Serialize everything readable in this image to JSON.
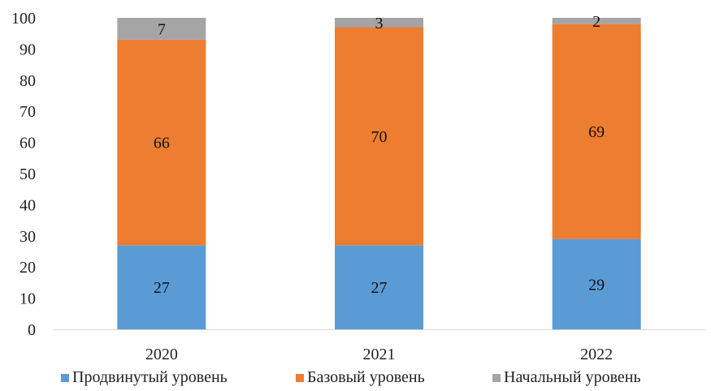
{
  "chart_data": {
    "type": "bar",
    "stacked": true,
    "categories": [
      "2020",
      "2021",
      "2022"
    ],
    "series": [
      {
        "name": "Продвинутый уровень",
        "values": [
          27,
          27,
          29
        ],
        "color": "#5b9bd5"
      },
      {
        "name": "Базовый уровень",
        "values": [
          66,
          70,
          69
        ],
        "color": "#ed7d31"
      },
      {
        "name": "Начальный уровень",
        "values": [
          7,
          3,
          2
        ],
        "color": "#a5a5a5"
      }
    ],
    "ylim": [
      0,
      100
    ],
    "yticks": [
      0,
      10,
      20,
      30,
      40,
      50,
      60,
      70,
      80,
      90,
      100
    ],
    "grid": false,
    "legend_position": "bottom"
  }
}
